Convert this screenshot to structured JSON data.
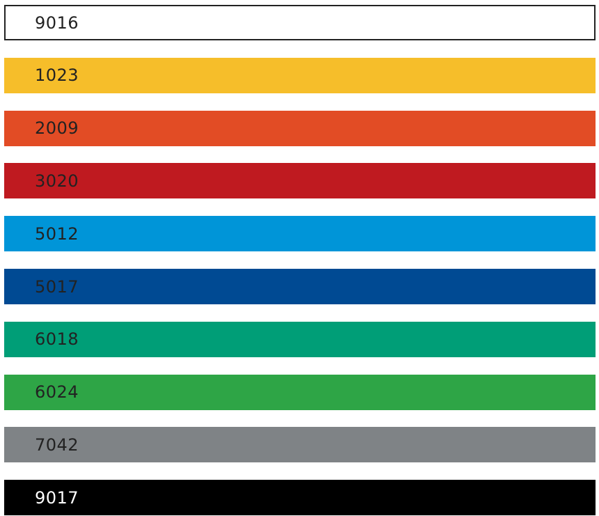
{
  "swatches": [
    {
      "label": "9016",
      "color": "#ffffff"
    },
    {
      "label": "1023",
      "color": "#f6be2a"
    },
    {
      "label": "2009",
      "color": "#e24c25"
    },
    {
      "label": "3020",
      "color": "#bf1a20"
    },
    {
      "label": "5012",
      "color": "#0095d8"
    },
    {
      "label": "5017",
      "color": "#004a93"
    },
    {
      "label": "6018",
      "color": "#009e77"
    },
    {
      "label": "6024",
      "color": "#2ea546"
    },
    {
      "label": "7042",
      "color": "#7f8386"
    },
    {
      "label": "9017",
      "color": "#000000"
    }
  ]
}
